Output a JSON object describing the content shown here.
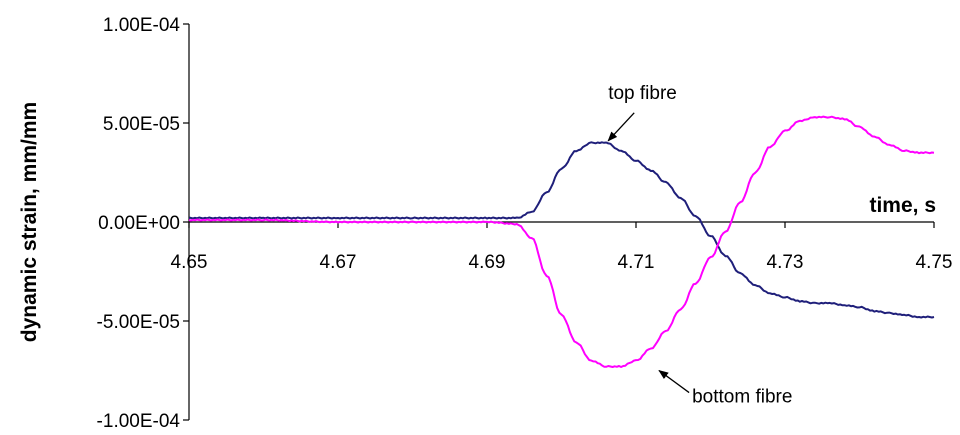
{
  "chart_data": {
    "type": "line",
    "xlabel": "time, s",
    "ylabel": "dynamic strain, mm/mm",
    "xlim": [
      4.65,
      4.75
    ],
    "ylim": [
      -0.0001,
      0.0001
    ],
    "x_ticks": [
      "4.65",
      "4.67",
      "4.69",
      "4.71",
      "4.73",
      "4.75"
    ],
    "y_ticks": [
      "1.00E-04",
      "5.00E-05",
      "0.00E+00",
      "-5.00E-05",
      "-1.00E-04"
    ],
    "grid": false,
    "legend": "none",
    "series": [
      {
        "name": "top fibre",
        "color": "#1f1f7a",
        "x": [
          4.65,
          4.66,
          4.67,
          4.68,
          4.69,
          4.694,
          4.696,
          4.698,
          4.7,
          4.702,
          4.704,
          4.706,
          4.708,
          4.71,
          4.712,
          4.714,
          4.716,
          4.718,
          4.72,
          4.722,
          4.724,
          4.726,
          4.728,
          4.73,
          4.732,
          4.734,
          4.736,
          4.738,
          4.74,
          4.742,
          4.744,
          4.746,
          4.748,
          4.75
        ],
        "y": [
          2e-06,
          2e-06,
          2e-06,
          2e-06,
          2e-06,
          2e-06,
          5e-06,
          1.5e-05,
          2.7e-05,
          3.6e-05,
          4e-05,
          4e-05,
          3.6e-05,
          3.1e-05,
          2.6e-05,
          2e-05,
          1.2e-05,
          3e-06,
          -7e-06,
          -1.7e-05,
          -2.6e-05,
          -3.2e-05,
          -3.6e-05,
          -3.8e-05,
          -4e-05,
          -4.1e-05,
          -4.1e-05,
          -4.2e-05,
          -4.3e-05,
          -4.5e-05,
          -4.6e-05,
          -4.7e-05,
          -4.8e-05,
          -4.8e-05
        ]
      },
      {
        "name": "bottom fibre",
        "color": "#ff00ff",
        "x": [
          4.65,
          4.66,
          4.67,
          4.68,
          4.69,
          4.694,
          4.696,
          4.698,
          4.7,
          4.702,
          4.704,
          4.706,
          4.708,
          4.71,
          4.712,
          4.714,
          4.716,
          4.718,
          4.72,
          4.722,
          4.724,
          4.726,
          4.728,
          4.73,
          4.732,
          4.734,
          4.736,
          4.738,
          4.74,
          4.742,
          4.744,
          4.746,
          4.748,
          4.75
        ],
        "y": [
          1e-06,
          1e-06,
          0.0,
          0.0,
          0.0,
          -1e-06,
          -8e-06,
          -2.7e-05,
          -4.7e-05,
          -6.1e-05,
          -7e-05,
          -7.3e-05,
          -7.3e-05,
          -7e-05,
          -6.4e-05,
          -5.5e-05,
          -4.4e-05,
          -3.1e-05,
          -1.8e-05,
          -5e-06,
          1e-05,
          2.5e-05,
          3.8e-05,
          4.6e-05,
          5.1e-05,
          5.3e-05,
          5.3e-05,
          5.2e-05,
          4.8e-05,
          4.3e-05,
          3.9e-05,
          3.6e-05,
          3.5e-05,
          3.5e-05
        ]
      }
    ],
    "annotations": [
      {
        "text": "top fibre",
        "series": "top fibre",
        "x": 4.706,
        "y": 4e-05
      },
      {
        "text": "bottom fibre",
        "series": "bottom fibre",
        "x": 4.708,
        "y": -7.3e-05
      }
    ]
  }
}
